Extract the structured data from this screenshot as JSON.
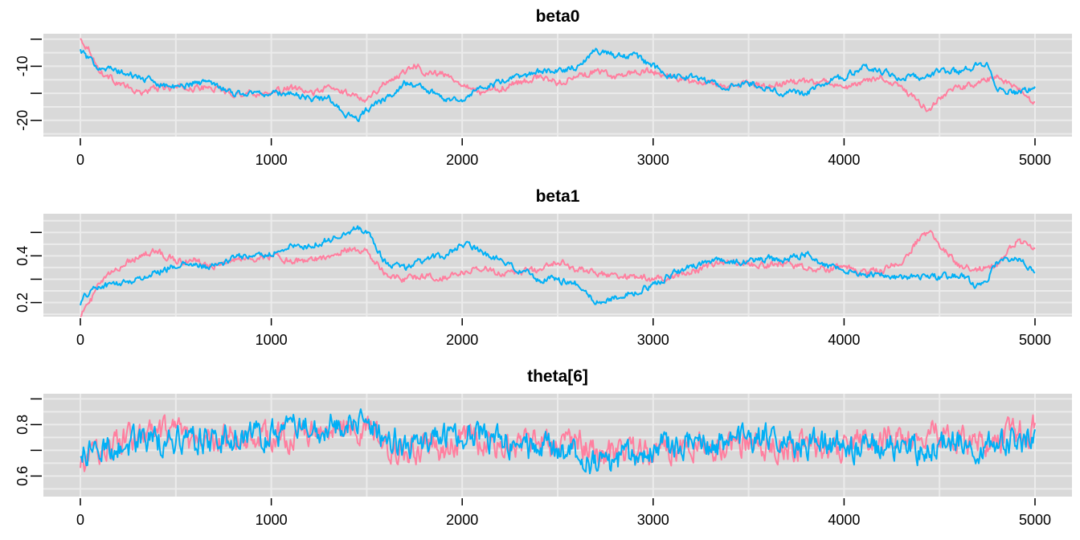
{
  "colors": {
    "chain1": "#ff7f9f",
    "chain2": "#00b0f6",
    "panel_bg": "#d9d9d9",
    "grid": "#ebebeb"
  },
  "chart_data": [
    {
      "type": "line",
      "title": "beta0",
      "xlim": [
        0,
        5000
      ],
      "ylim": [
        -23,
        -4
      ],
      "x_ticks": [
        0,
        1000,
        2000,
        3000,
        4000,
        5000
      ],
      "x_tick_labels": [
        "0",
        "1000",
        "2000",
        "3000",
        "4000",
        "5000"
      ],
      "y_ticks": [
        -25,
        -20,
        -15,
        -10,
        -5
      ],
      "y_tick_labels": [
        "",
        "-20",
        "",
        "-10",
        ""
      ],
      "noise": 0.5,
      "series": [
        {
          "color": "#ff7f9f",
          "x": [
            0,
            50,
            100,
            200,
            300,
            400,
            500,
            600,
            700,
            800,
            900,
            1000,
            1100,
            1200,
            1300,
            1400,
            1500,
            1600,
            1700,
            1750,
            1800,
            1900,
            2000,
            2100,
            2200,
            2300,
            2400,
            2500,
            2600,
            2700,
            2800,
            2900,
            3000,
            3100,
            3200,
            3300,
            3400,
            3500,
            3600,
            3700,
            3800,
            3900,
            4000,
            4100,
            4200,
            4300,
            4400,
            4450,
            4500,
            4600,
            4700,
            4800,
            4900,
            5000
          ],
          "y": [
            -5,
            -7,
            -11,
            -13,
            -15,
            -14,
            -14,
            -14,
            -14,
            -15,
            -15,
            -15,
            -14,
            -15,
            -14,
            -15,
            -16,
            -13,
            -11,
            -9.5,
            -11,
            -11.5,
            -13,
            -15,
            -14,
            -13,
            -12,
            -13,
            -12,
            -11,
            -12,
            -11,
            -11,
            -12,
            -13,
            -13,
            -14,
            -13,
            -14,
            -13,
            -13,
            -13,
            -14,
            -13,
            -12,
            -14,
            -17,
            -18,
            -16,
            -14,
            -13,
            -12,
            -14,
            -17
          ]
        },
        {
          "color": "#00b0f6",
          "x": [
            0,
            50,
            100,
            200,
            300,
            400,
            500,
            600,
            700,
            800,
            900,
            1000,
            1100,
            1200,
            1300,
            1400,
            1450,
            1500,
            1600,
            1700,
            1800,
            1900,
            2000,
            2100,
            2200,
            2300,
            2400,
            2500,
            2600,
            2700,
            2800,
            2900,
            3000,
            3100,
            3200,
            3300,
            3400,
            3500,
            3600,
            3700,
            3800,
            3900,
            4000,
            4100,
            4200,
            4300,
            4400,
            4500,
            4600,
            4700,
            4750,
            4800,
            4900,
            5000
          ],
          "y": [
            -7,
            -9,
            -10,
            -11,
            -12,
            -13,
            -14,
            -13,
            -13,
            -15,
            -15,
            -15,
            -15,
            -16,
            -16,
            -19,
            -20,
            -18,
            -16,
            -13,
            -14,
            -16,
            -16,
            -14,
            -13,
            -12,
            -11,
            -11,
            -10,
            -7,
            -8,
            -8,
            -10,
            -12,
            -12,
            -13,
            -14,
            -13,
            -14,
            -15,
            -15,
            -13,
            -12,
            -10,
            -11,
            -12,
            -12,
            -11,
            -11,
            -10,
            -10,
            -14,
            -15,
            -14
          ]
        }
      ]
    },
    {
      "type": "line",
      "title": "beta1",
      "xlim": [
        0,
        5000
      ],
      "ylim": [
        0.14,
        0.58
      ],
      "x_ticks": [
        0,
        1000,
        2000,
        3000,
        4000,
        5000
      ],
      "x_tick_labels": [
        "0",
        "1000",
        "2000",
        "3000",
        "4000",
        "5000"
      ],
      "y_ticks": [
        0.2,
        0.3,
        0.4,
        0.5
      ],
      "y_tick_labels": [
        "0.2",
        "",
        "0.4",
        ""
      ],
      "noise": 0.012,
      "series": [
        {
          "color": "#ff7f9f",
          "x": [
            0,
            50,
            100,
            200,
            300,
            400,
            500,
            600,
            700,
            800,
            900,
            1000,
            1100,
            1200,
            1300,
            1400,
            1500,
            1600,
            1700,
            1800,
            1900,
            2000,
            2100,
            2200,
            2300,
            2400,
            2500,
            2600,
            2700,
            2800,
            2900,
            3000,
            3100,
            3200,
            3300,
            3400,
            3500,
            3600,
            3700,
            3800,
            3900,
            4000,
            4100,
            4200,
            4300,
            4400,
            4450,
            4500,
            4600,
            4700,
            4800,
            4900,
            5000
          ],
          "y": [
            0.15,
            0.2,
            0.28,
            0.35,
            0.4,
            0.42,
            0.38,
            0.38,
            0.36,
            0.38,
            0.39,
            0.4,
            0.38,
            0.38,
            0.4,
            0.43,
            0.42,
            0.32,
            0.3,
            0.31,
            0.31,
            0.33,
            0.35,
            0.33,
            0.33,
            0.34,
            0.38,
            0.34,
            0.33,
            0.31,
            0.31,
            0.3,
            0.31,
            0.33,
            0.36,
            0.38,
            0.36,
            0.36,
            0.37,
            0.35,
            0.34,
            0.35,
            0.33,
            0.34,
            0.38,
            0.48,
            0.5,
            0.45,
            0.36,
            0.34,
            0.36,
            0.46,
            0.44
          ]
        },
        {
          "color": "#00b0f6",
          "x": [
            0,
            50,
            100,
            200,
            300,
            400,
            500,
            600,
            700,
            800,
            900,
            1000,
            1100,
            1200,
            1300,
            1400,
            1450,
            1500,
            1600,
            1700,
            1800,
            1900,
            2000,
            2100,
            2200,
            2300,
            2400,
            2500,
            2600,
            2700,
            2800,
            2900,
            3000,
            3100,
            3200,
            3300,
            3400,
            3500,
            3600,
            3700,
            3800,
            3900,
            4000,
            4100,
            4200,
            4300,
            4400,
            4500,
            4600,
            4700,
            4750,
            4800,
            4900,
            5000
          ],
          "y": [
            0.2,
            0.25,
            0.27,
            0.28,
            0.3,
            0.33,
            0.36,
            0.36,
            0.35,
            0.39,
            0.4,
            0.41,
            0.44,
            0.44,
            0.47,
            0.5,
            0.53,
            0.5,
            0.37,
            0.35,
            0.38,
            0.4,
            0.45,
            0.42,
            0.38,
            0.34,
            0.3,
            0.3,
            0.28,
            0.2,
            0.22,
            0.24,
            0.28,
            0.32,
            0.35,
            0.38,
            0.37,
            0.38,
            0.39,
            0.38,
            0.41,
            0.36,
            0.34,
            0.31,
            0.32,
            0.31,
            0.31,
            0.31,
            0.32,
            0.27,
            0.3,
            0.37,
            0.4,
            0.34
          ]
        }
      ]
    },
    {
      "type": "line",
      "title": "theta[6]",
      "xlim": [
        0,
        5000
      ],
      "ylim": [
        0.52,
        0.92
      ],
      "x_ticks": [
        0,
        1000,
        2000,
        3000,
        4000,
        5000
      ],
      "x_tick_labels": [
        "0",
        "1000",
        "2000",
        "3000",
        "4000",
        "5000"
      ],
      "y_ticks": [
        0.6,
        0.7,
        0.8,
        0.9
      ],
      "y_tick_labels": [
        "0.6",
        "",
        "0.8",
        ""
      ],
      "noise": 0.045,
      "series": [
        {
          "color": "#ff7f9f",
          "x": [
            0,
            100,
            200,
            300,
            400,
            500,
            600,
            700,
            800,
            900,
            1000,
            1100,
            1200,
            1300,
            1400,
            1500,
            1600,
            1700,
            1800,
            1900,
            2000,
            2100,
            2200,
            2300,
            2400,
            2500,
            2600,
            2700,
            2800,
            2900,
            3000,
            3100,
            3200,
            3300,
            3400,
            3500,
            3600,
            3700,
            3800,
            3900,
            4000,
            4100,
            4200,
            4300,
            4400,
            4500,
            4600,
            4700,
            4800,
            4900,
            5000
          ],
          "y": [
            0.64,
            0.7,
            0.73,
            0.75,
            0.76,
            0.75,
            0.74,
            0.74,
            0.75,
            0.74,
            0.75,
            0.76,
            0.76,
            0.77,
            0.78,
            0.77,
            0.72,
            0.69,
            0.71,
            0.71,
            0.74,
            0.73,
            0.73,
            0.72,
            0.73,
            0.73,
            0.74,
            0.68,
            0.7,
            0.69,
            0.71,
            0.72,
            0.73,
            0.72,
            0.72,
            0.73,
            0.73,
            0.72,
            0.72,
            0.72,
            0.72,
            0.73,
            0.74,
            0.73,
            0.78,
            0.76,
            0.74,
            0.73,
            0.75,
            0.76,
            0.78
          ]
        },
        {
          "color": "#00b0f6",
          "x": [
            0,
            100,
            200,
            300,
            400,
            500,
            600,
            700,
            800,
            900,
            1000,
            1100,
            1200,
            1300,
            1400,
            1500,
            1600,
            1700,
            1800,
            1900,
            2000,
            2100,
            2200,
            2300,
            2400,
            2500,
            2600,
            2700,
            2800,
            2900,
            3000,
            3100,
            3200,
            3300,
            3400,
            3500,
            3600,
            3700,
            3800,
            3900,
            4000,
            4100,
            4200,
            4300,
            4400,
            4500,
            4600,
            4700,
            4800,
            4900,
            5000
          ],
          "y": [
            0.68,
            0.71,
            0.72,
            0.73,
            0.74,
            0.74,
            0.74,
            0.74,
            0.75,
            0.75,
            0.76,
            0.78,
            0.79,
            0.79,
            0.81,
            0.8,
            0.75,
            0.72,
            0.73,
            0.74,
            0.77,
            0.76,
            0.74,
            0.71,
            0.71,
            0.7,
            0.69,
            0.64,
            0.66,
            0.68,
            0.7,
            0.72,
            0.73,
            0.72,
            0.73,
            0.74,
            0.74,
            0.74,
            0.73,
            0.73,
            0.72,
            0.71,
            0.72,
            0.72,
            0.71,
            0.72,
            0.73,
            0.72,
            0.73,
            0.74,
            0.75
          ]
        }
      ]
    }
  ]
}
